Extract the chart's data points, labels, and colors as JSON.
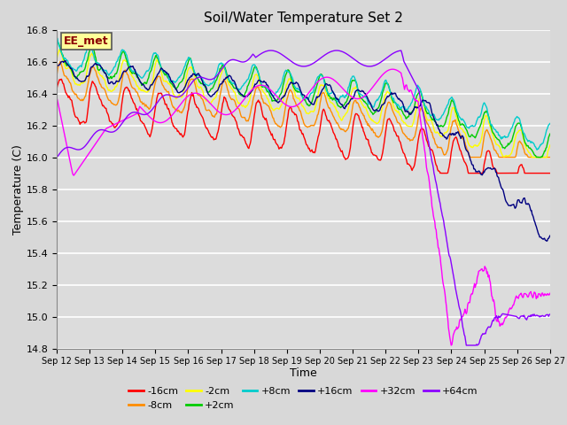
{
  "title": "Soil/Water Temperature Set 2",
  "xlabel": "Time",
  "ylabel": "Temperature (C)",
  "ylim": [
    14.8,
    16.8
  ],
  "x_tick_labels": [
    "Sep 12",
    "Sep 13",
    "Sep 14",
    "Sep 15",
    "Sep 16",
    "Sep 17",
    "Sep 18",
    "Sep 19",
    "Sep 20",
    "Sep 21",
    "Sep 22",
    "Sep 23",
    "Sep 24",
    "Sep 25",
    "Sep 26",
    "Sep 27"
  ],
  "annotation_text": "EE_met",
  "annotation_color": "#8B0000",
  "annotation_bg": "#FFFF99",
  "bg_color": "#DCDCDC",
  "grid_color": "#FFFFFF",
  "series": [
    {
      "label": "-16cm",
      "color": "#FF0000"
    },
    {
      "label": "-8cm",
      "color": "#FF8C00"
    },
    {
      "label": "-2cm",
      "color": "#FFFF00"
    },
    {
      "label": "+2cm",
      "color": "#00CC00"
    },
    {
      "label": "+8cm",
      "color": "#00CCCC"
    },
    {
      "label": "+16cm",
      "color": "#000080"
    },
    {
      "label": "+32cm",
      "color": "#FF00FF"
    },
    {
      "label": "+64cm",
      "color": "#8B00FF"
    }
  ]
}
